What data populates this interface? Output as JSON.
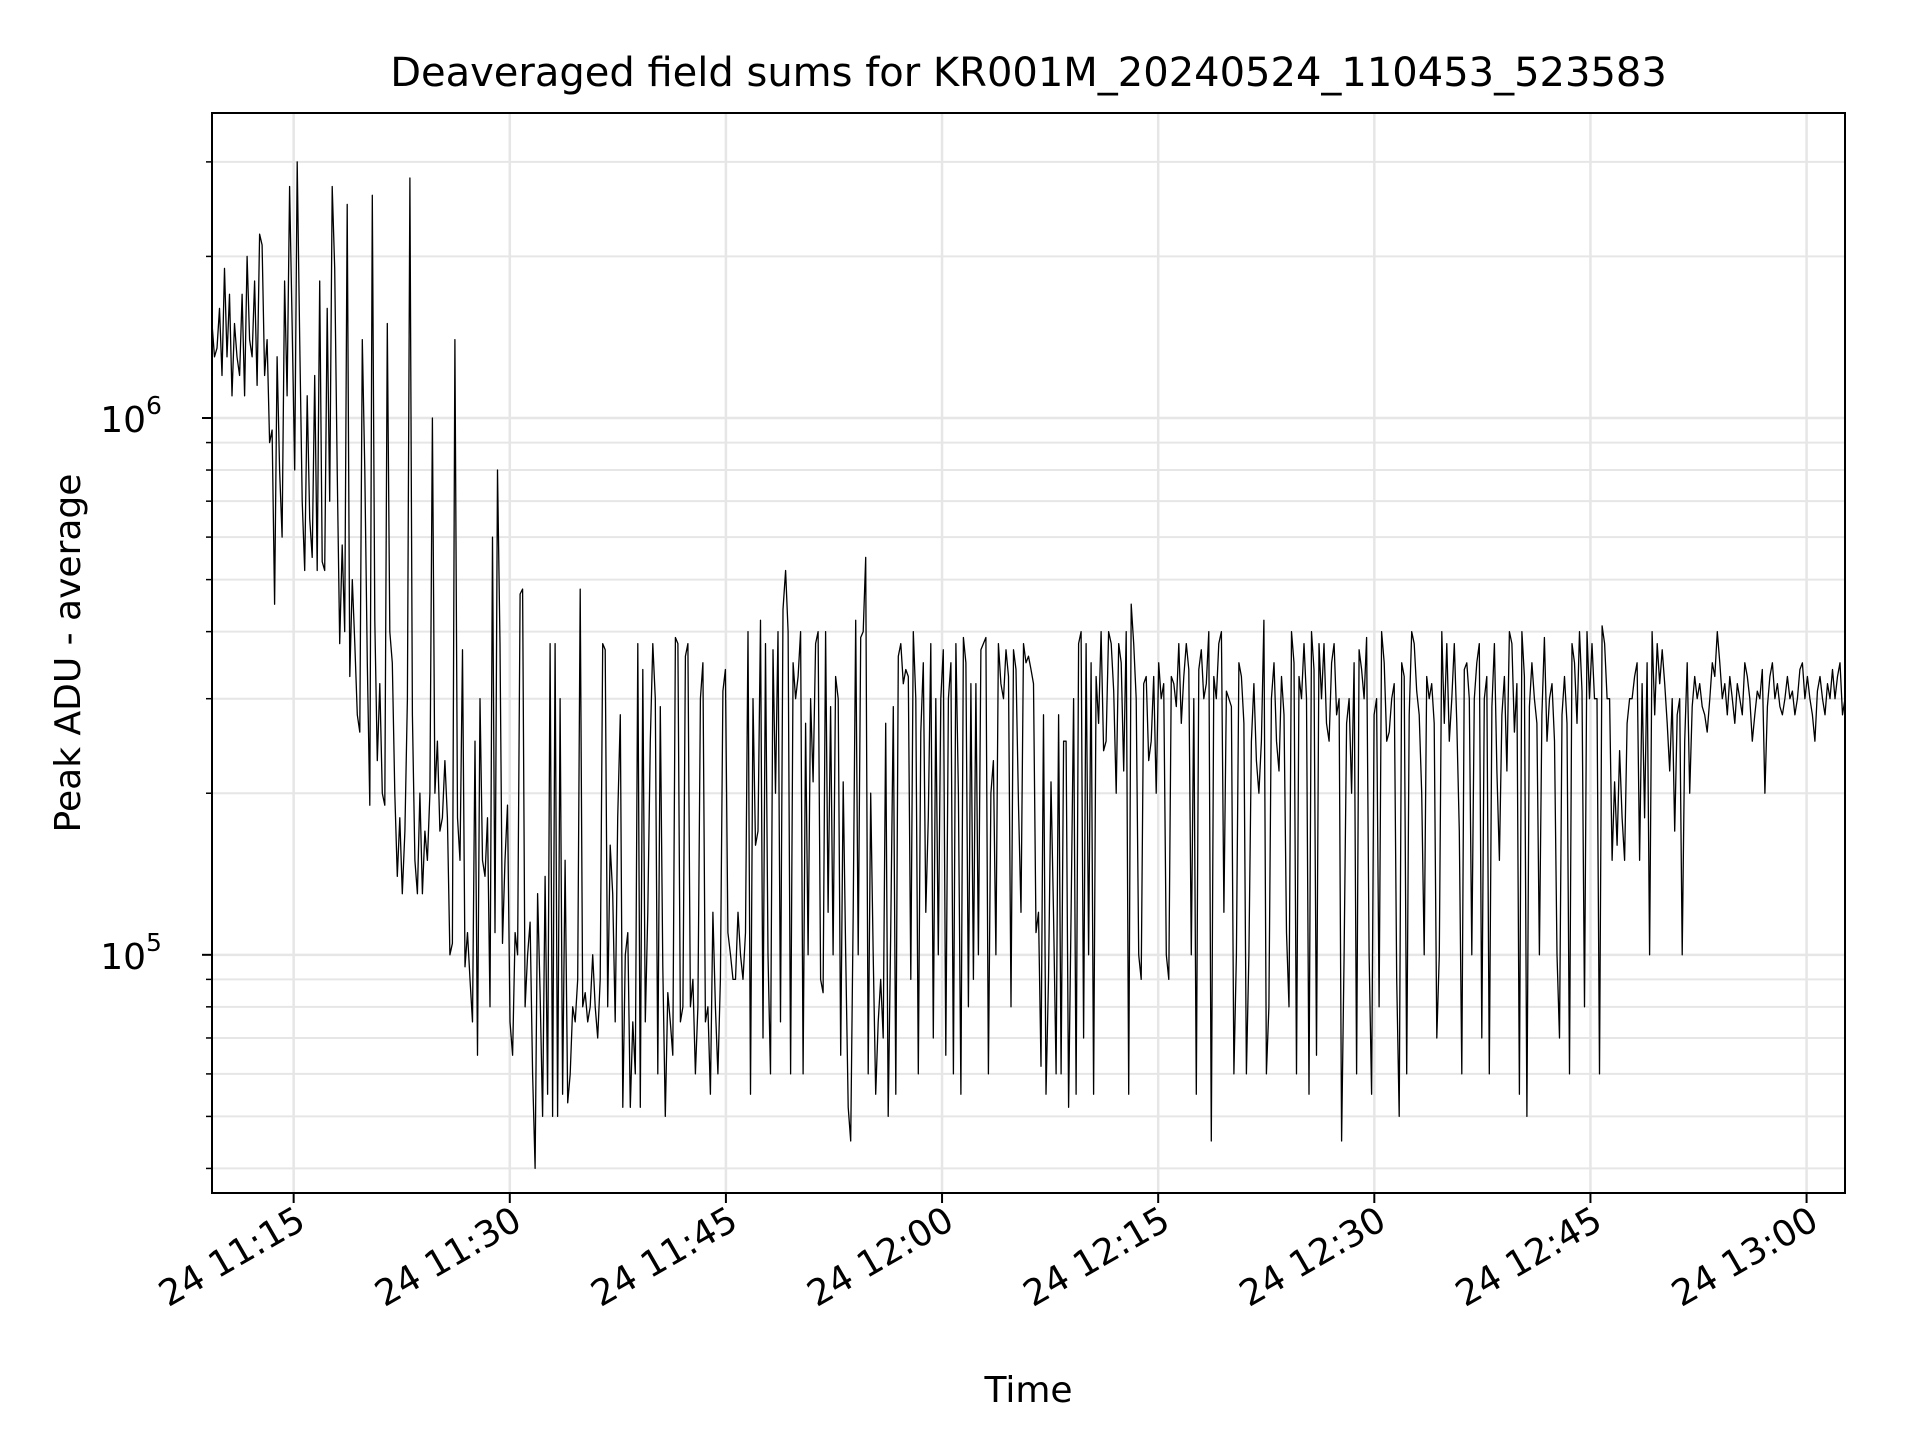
{
  "chart_data": {
    "type": "line",
    "title": "Deaveraged field sums for KR001M_20240524_110453_523583",
    "xlabel": "Time",
    "ylabel": "Peak ADU - average",
    "y_scale": "log",
    "x_domain": [
      "2024-05-24 11:09:20",
      "2024-05-24 13:02:40"
    ],
    "ylim": [
      36000,
      3700000
    ],
    "x_tick_times": [
      "2024-05-24 11:15",
      "2024-05-24 11:30",
      "2024-05-24 11:45",
      "2024-05-24 12:00",
      "2024-05-24 12:15",
      "2024-05-24 12:30",
      "2024-05-24 12:45",
      "2024-05-24 13:00"
    ],
    "x_tick_labels": [
      "24 11:15",
      "24 11:30",
      "24 11:45",
      "24 12:00",
      "24 12:15",
      "24 12:30",
      "24 12:45",
      "24 13:00"
    ],
    "y_tick_values": [
      100000,
      1000000
    ],
    "y_tick_labels": [
      {
        "base": "10",
        "exp": "5"
      },
      {
        "base": "10",
        "exp": "6"
      }
    ],
    "grid": true,
    "line_color": "#000000",
    "series": [
      {
        "time_start": "2024-05-24 11:09:20",
        "time_end": "2024-05-24 13:02:40",
        "values": [
          1500000,
          1300000,
          1350000,
          1600000,
          1200000,
          1900000,
          1300000,
          1700000,
          1100000,
          1500000,
          1300000,
          1200000,
          1700000,
          1100000,
          2000000,
          1400000,
          1300000,
          1800000,
          1150000,
          2200000,
          2100000,
          1200000,
          1400000,
          900000,
          950000,
          450000,
          1300000,
          800000,
          600000,
          1800000,
          1100000,
          2700000,
          1500000,
          800000,
          3000000,
          1400000,
          700000,
          520000,
          1100000,
          650000,
          550000,
          1200000,
          520000,
          1800000,
          540000,
          520000,
          1600000,
          700000,
          2700000,
          1900000,
          800000,
          380000,
          580000,
          400000,
          2500000,
          330000,
          500000,
          380000,
          280000,
          260000,
          1400000,
          800000,
          350000,
          190000,
          2600000,
          420000,
          230000,
          320000,
          200000,
          190000,
          1500000,
          400000,
          350000,
          200000,
          140000,
          180000,
          130000,
          170000,
          300000,
          2800000,
          280000,
          150000,
          130000,
          200000,
          130000,
          170000,
          150000,
          200000,
          1000000,
          200000,
          250000,
          170000,
          180000,
          230000,
          180000,
          100000,
          105000,
          1400000,
          180000,
          150000,
          370000,
          95000,
          110000,
          90000,
          75000,
          250000,
          65000,
          300000,
          150000,
          140000,
          180000,
          80000,
          600000,
          110000,
          800000,
          380000,
          105000,
          150000,
          190000,
          75000,
          65000,
          110000,
          100000,
          470000,
          480000,
          80000,
          100000,
          115000,
          60000,
          40000,
          130000,
          85000,
          50000,
          140000,
          55000,
          380000,
          50000,
          380000,
          50000,
          300000,
          55000,
          150000,
          53000,
          60000,
          80000,
          75000,
          90000,
          480000,
          80000,
          85000,
          75000,
          80000,
          100000,
          80000,
          70000,
          90000,
          380000,
          370000,
          80000,
          160000,
          130000,
          75000,
          180000,
          280000,
          52000,
          100000,
          110000,
          52000,
          75000,
          60000,
          380000,
          52000,
          340000,
          75000,
          120000,
          250000,
          380000,
          300000,
          60000,
          290000,
          95000,
          50000,
          85000,
          75000,
          65000,
          390000,
          380000,
          75000,
          80000,
          360000,
          380000,
          80000,
          90000,
          60000,
          80000,
          300000,
          350000,
          75000,
          80000,
          55000,
          120000,
          80000,
          60000,
          90000,
          310000,
          340000,
          110000,
          100000,
          90000,
          90000,
          120000,
          100000,
          90000,
          110000,
          400000,
          55000,
          300000,
          160000,
          170000,
          420000,
          70000,
          380000,
          100000,
          60000,
          370000,
          200000,
          400000,
          75000,
          440000,
          520000,
          400000,
          60000,
          350000,
          300000,
          330000,
          400000,
          60000,
          270000,
          100000,
          300000,
          210000,
          380000,
          400000,
          90000,
          85000,
          400000,
          120000,
          290000,
          100000,
          330000,
          300000,
          65000,
          210000,
          100000,
          52000,
          45000,
          120000,
          420000,
          100000,
          390000,
          400000,
          550000,
          60000,
          200000,
          100000,
          55000,
          75000,
          90000,
          70000,
          270000,
          50000,
          110000,
          290000,
          55000,
          360000,
          380000,
          320000,
          340000,
          330000,
          90000,
          400000,
          300000,
          60000,
          260000,
          350000,
          120000,
          180000,
          380000,
          70000,
          300000,
          100000,
          300000,
          370000,
          65000,
          300000,
          350000,
          60000,
          380000,
          200000,
          55000,
          390000,
          350000,
          80000,
          320000,
          90000,
          320000,
          100000,
          370000,
          380000,
          390000,
          60000,
          200000,
          230000,
          100000,
          380000,
          320000,
          300000,
          370000,
          330000,
          80000,
          370000,
          340000,
          190000,
          120000,
          380000,
          350000,
          360000,
          340000,
          320000,
          110000,
          120000,
          62000,
          280000,
          55000,
          90000,
          210000,
          120000,
          60000,
          280000,
          60000,
          250000,
          250000,
          52000,
          120000,
          300000,
          55000,
          380000,
          400000,
          70000,
          380000,
          100000,
          350000,
          55000,
          330000,
          270000,
          400000,
          240000,
          250000,
          400000,
          380000,
          310000,
          200000,
          380000,
          350000,
          220000,
          400000,
          55000,
          450000,
          380000,
          300000,
          100000,
          90000,
          320000,
          330000,
          230000,
          250000,
          330000,
          200000,
          350000,
          300000,
          320000,
          100000,
          90000,
          330000,
          320000,
          290000,
          380000,
          270000,
          330000,
          380000,
          340000,
          100000,
          300000,
          55000,
          340000,
          370000,
          300000,
          320000,
          400000,
          45000,
          330000,
          300000,
          380000,
          400000,
          120000,
          310000,
          300000,
          290000,
          60000,
          100000,
          350000,
          330000,
          270000,
          60000,
          100000,
          250000,
          320000,
          230000,
          200000,
          250000,
          420000,
          60000,
          80000,
          300000,
          350000,
          250000,
          220000,
          330000,
          280000,
          110000,
          80000,
          400000,
          350000,
          60000,
          330000,
          300000,
          380000,
          300000,
          55000,
          400000,
          340000,
          65000,
          380000,
          300000,
          380000,
          270000,
          250000,
          350000,
          380000,
          280000,
          300000,
          45000,
          100000,
          270000,
          300000,
          200000,
          350000,
          60000,
          370000,
          340000,
          300000,
          390000,
          100000,
          55000,
          280000,
          300000,
          80000,
          400000,
          350000,
          250000,
          260000,
          300000,
          320000,
          90000,
          50000,
          350000,
          330000,
          60000,
          280000,
          400000,
          380000,
          310000,
          280000,
          200000,
          100000,
          330000,
          300000,
          320000,
          270000,
          70000,
          100000,
          400000,
          270000,
          380000,
          250000,
          300000,
          380000,
          270000,
          170000,
          60000,
          340000,
          350000,
          300000,
          100000,
          300000,
          350000,
          380000,
          70000,
          300000,
          330000,
          60000,
          290000,
          380000,
          220000,
          150000,
          280000,
          330000,
          220000,
          400000,
          380000,
          260000,
          320000,
          55000,
          400000,
          330000,
          50000,
          290000,
          350000,
          300000,
          270000,
          100000,
          280000,
          390000,
          250000,
          300000,
          320000,
          250000,
          100000,
          70000,
          280000,
          330000,
          270000,
          60000,
          380000,
          350000,
          270000,
          400000,
          310000,
          80000,
          400000,
          300000,
          380000,
          300000,
          300000,
          60000,
          410000,
          380000,
          300000,
          300000,
          150000,
          210000,
          160000,
          240000,
          180000,
          150000,
          270000,
          300000,
          300000,
          330000,
          350000,
          150000,
          320000,
          180000,
          350000,
          100000,
          400000,
          280000,
          380000,
          320000,
          370000,
          320000,
          270000,
          220000,
          300000,
          170000,
          280000,
          300000,
          100000,
          250000,
          350000,
          200000,
          290000,
          330000,
          300000,
          320000,
          290000,
          280000,
          260000,
          300000,
          350000,
          330000,
          400000,
          350000,
          300000,
          320000,
          280000,
          330000,
          300000,
          270000,
          320000,
          300000,
          280000,
          350000,
          330000,
          300000,
          250000,
          280000,
          310000,
          300000,
          340000,
          200000,
          290000,
          330000,
          350000,
          300000,
          320000,
          290000,
          280000,
          300000,
          330000,
          300000,
          310000,
          280000,
          300000,
          340000,
          350000,
          300000,
          330000,
          300000,
          280000,
          250000,
          310000,
          330000,
          300000,
          280000,
          320000,
          300000,
          340000,
          300000,
          330000,
          350000,
          280000,
          300000
        ]
      }
    ]
  }
}
